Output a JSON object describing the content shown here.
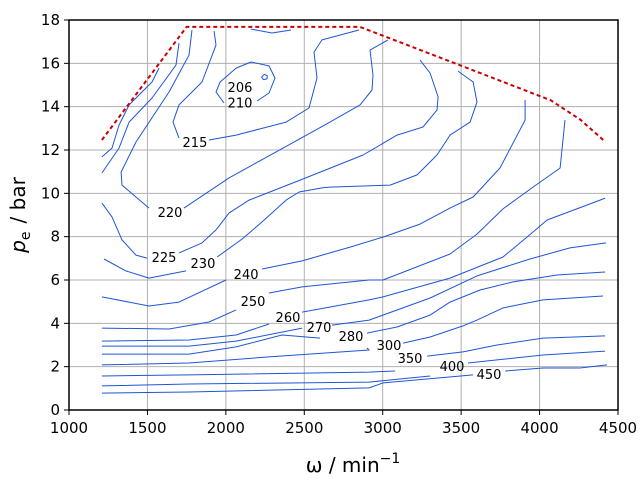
{
  "chart_data": {
    "type": "contour",
    "title": "",
    "xlabel": "ω / min",
    "xlabel_sup": "−1",
    "ylabel": "p",
    "ylabel_sub": "e",
    "ylabel_unit": "/ bar",
    "xlim": [
      1000,
      4500
    ],
    "ylim": [
      0,
      18
    ],
    "xticks": [
      1000,
      1500,
      2000,
      2500,
      3000,
      3500,
      4000,
      4500
    ],
    "yticks": [
      0,
      2,
      4,
      6,
      8,
      10,
      12,
      14,
      16,
      18
    ],
    "grid": true,
    "colors": {
      "contour": "#1f55d6",
      "full_load": "#cc0000",
      "grid": "#b0b0b0"
    },
    "full_load_curve": [
      [
        1210,
        12.46
      ],
      [
        1750,
        17.68
      ],
      [
        2855,
        17.68
      ],
      [
        3490,
        15.92
      ],
      [
        4070,
        14.3
      ],
      [
        4260,
        13.4
      ],
      [
        4420,
        12.37
      ]
    ],
    "contours": [
      {
        "level": "206",
        "label": [
          2090,
          14.9
        ],
        "segments": [
          [
            [
              2245,
              15.5
            ],
            [
              2265,
              15.42
            ],
            [
              2262,
              15.28
            ],
            [
              2240,
              15.25
            ],
            [
              2228,
              15.36
            ],
            [
              2245,
              15.5
            ]
          ]
        ]
      },
      {
        "level": "210",
        "label": [
          2090,
          14.2
        ],
        "segments": [
          [
            [
              1988,
              14.17
            ],
            [
              1937,
              14.68
            ],
            [
              1963,
              15.14
            ],
            [
              2065,
              15.78
            ],
            [
              2160,
              16.06
            ],
            [
              2275,
              15.88
            ],
            [
              2313,
              15.32
            ],
            [
              2275,
              14.63
            ],
            [
              2199,
              14.26
            ]
          ],
          [
            [
              2160,
              17.58
            ],
            [
              2294,
              17.4
            ],
            [
              2415,
              17.54
            ]
          ]
        ]
      },
      {
        "level": "215",
        "label": [
          1803,
          12.37
        ],
        "segments": [
          [
            [
              1925,
              17.49
            ],
            [
              1937,
              16.84
            ],
            [
              1848,
              15.14
            ],
            [
              1701,
              14.08
            ],
            [
              1663,
              13.29
            ],
            [
              1701,
              12.55
            ]
          ],
          [
            [
              1893,
              12.46
            ],
            [
              2065,
              12.69
            ],
            [
              2384,
              13.29
            ],
            [
              2530,
              13.94
            ],
            [
              2581,
              15.32
            ],
            [
              2562,
              16.52
            ],
            [
              2613,
              17.08
            ],
            [
              2849,
              17.54
            ]
          ]
        ]
      },
      {
        "level": "220",
        "label": [
          1644,
          9.14
        ],
        "segments": [
          [
            [
              1784,
              17.54
            ],
            [
              1765,
              16.38
            ],
            [
              1638,
              14.68
            ],
            [
              1427,
              12.37
            ],
            [
              1332,
              10.98
            ],
            [
              1338,
              10.38
            ],
            [
              1510,
              9.32
            ]
          ],
          [
            [
              1733,
              9.32
            ],
            [
              2020,
              10.71
            ],
            [
              2320,
              11.91
            ],
            [
              2664,
              13.29
            ],
            [
              2855,
              14.08
            ],
            [
              2932,
              14.77
            ],
            [
              2938,
              15.46
            ],
            [
              2919,
              16.61
            ],
            [
              3034,
              17.08
            ]
          ]
        ]
      },
      {
        "level": "225",
        "label": [
          1606,
          7.06
        ],
        "segments": [
          [
            [
              1701,
              16.94
            ],
            [
              1682,
              15.92
            ],
            [
              1529,
              14.4
            ],
            [
              1383,
              13.29
            ],
            [
              1319,
              12.09
            ],
            [
              1210,
              10.94
            ]
          ],
          [
            [
              1210,
              9.55
            ],
            [
              1274,
              8.91
            ],
            [
              1338,
              7.85
            ],
            [
              1427,
              7.15
            ],
            [
              1497,
              7.01
            ]
          ],
          [
            [
              1701,
              7.25
            ],
            [
              1848,
              7.71
            ],
            [
              1937,
              8.31
            ],
            [
              2020,
              9.09
            ],
            [
              2148,
              9.69
            ],
            [
              2473,
              10.61
            ],
            [
              2875,
              11.77
            ],
            [
              3091,
              12.69
            ],
            [
              3257,
              13.06
            ],
            [
              3346,
              13.84
            ],
            [
              3353,
              14.45
            ],
            [
              3302,
              15.55
            ],
            [
              3238,
              16.15
            ]
          ]
        ]
      },
      {
        "level": "230",
        "label": [
          1854,
          6.78
        ],
        "segments": [
          [
            [
              1574,
              15.78
            ],
            [
              1529,
              15.14
            ],
            [
              1383,
              14.08
            ],
            [
              1319,
              13.15
            ],
            [
              1274,
              12.09
            ],
            [
              1210,
              11.68
            ]
          ],
          [
            [
              1223,
              6.97
            ],
            [
              1363,
              6.42
            ],
            [
              1510,
              6.09
            ],
            [
              1746,
              6.42
            ]
          ],
          [
            [
              1944,
              7.06
            ],
            [
              2103,
              7.89
            ],
            [
              2231,
              8.68
            ],
            [
              2384,
              9.69
            ],
            [
              2467,
              10.06
            ],
            [
              2613,
              10.25
            ],
            [
              2664,
              10.29
            ],
            [
              3047,
              10.38
            ],
            [
              3219,
              10.85
            ],
            [
              3346,
              11.77
            ],
            [
              3429,
              12.69
            ],
            [
              3557,
              13.29
            ],
            [
              3601,
              14.21
            ],
            [
              3576,
              15.14
            ],
            [
              3480,
              15.64
            ]
          ]
        ]
      },
      {
        "level": "240",
        "label": [
          2129,
          6.28
        ],
        "segments": [
          [
            [
              1210,
              5.22
            ],
            [
              1510,
              4.8
            ],
            [
              1701,
              4.98
            ],
            [
              2001,
              6.0
            ]
          ],
          [
            [
              2231,
              6.51
            ],
            [
              2486,
              6.88
            ],
            [
              2792,
              7.52
            ],
            [
              3002,
              7.98
            ],
            [
              3238,
              8.58
            ],
            [
              3429,
              9.32
            ],
            [
              3576,
              9.83
            ],
            [
              3748,
              11.17
            ],
            [
              3908,
              13.38
            ],
            [
              3908,
              14.31
            ]
          ]
        ]
      },
      {
        "level": "250",
        "label": [
          2173,
          5.03
        ],
        "segments": [
          [
            [
              1210,
              3.78
            ],
            [
              1638,
              3.74
            ],
            [
              1893,
              4.06
            ],
            [
              2065,
              4.62
            ]
          ],
          [
            [
              2275,
              5.4
            ],
            [
              2486,
              5.68
            ],
            [
              2913,
              6.0
            ],
            [
              3002,
              6.0
            ],
            [
              3429,
              7.2
            ],
            [
              3601,
              8.12
            ],
            [
              3767,
              9.28
            ],
            [
              3958,
              10.29
            ],
            [
              4131,
              11.17
            ],
            [
              4162,
              13.38
            ]
          ]
        ]
      },
      {
        "level": "260",
        "label": [
          2396,
          4.29
        ],
        "segments": [
          [
            [
              1210,
              3.18
            ],
            [
              1765,
              3.23
            ],
            [
              2065,
              3.46
            ],
            [
              2275,
              3.97
            ]
          ],
          [
            [
              2486,
              4.52
            ],
            [
              2913,
              5.08
            ],
            [
              3002,
              5.22
            ],
            [
              3429,
              6.09
            ],
            [
              3767,
              7.06
            ],
            [
              3920,
              7.98
            ],
            [
              4048,
              8.77
            ],
            [
              4386,
              9.69
            ],
            [
              4418,
              9.78
            ]
          ]
        ]
      },
      {
        "level": "270",
        "label": [
          2594,
          3.83
        ],
        "segments": [
          [
            [
              1210,
              2.95
            ],
            [
              1765,
              2.95
            ],
            [
              2065,
              3.18
            ],
            [
              2486,
              3.78
            ]
          ],
          [
            [
              2677,
              3.92
            ],
            [
              2913,
              4.15
            ],
            [
              3302,
              5.17
            ],
            [
              3601,
              6.19
            ],
            [
              3939,
              6.97
            ],
            [
              4194,
              7.48
            ],
            [
              4424,
              7.71
            ]
          ]
        ]
      },
      {
        "level": "280",
        "label": [
          2798,
          3.42
        ],
        "segments": [
          [
            [
              1210,
              2.58
            ],
            [
              1765,
              2.58
            ],
            [
              2065,
              2.91
            ],
            [
              2358,
              3.46
            ],
            [
              2600,
              3.32
            ]
          ],
          [
            [
              2900,
              3.55
            ],
            [
              3091,
              3.83
            ],
            [
              3302,
              4.38
            ],
            [
              3429,
              4.98
            ],
            [
              3620,
              5.54
            ],
            [
              3831,
              5.91
            ],
            [
              4111,
              6.23
            ],
            [
              4418,
              6.37
            ]
          ]
        ]
      },
      {
        "level": "300",
        "label": [
          3040,
          3.0
        ],
        "segments": [
          [
            [
              1210,
              2.08
            ],
            [
              1765,
              2.17
            ],
            [
              2275,
              2.45
            ],
            [
              2913,
              2.77
            ],
            [
              2900,
              2.86
            ]
          ],
          [
            [
              3130,
              3.09
            ],
            [
              3302,
              3.37
            ],
            [
              3512,
              3.88
            ],
            [
              3601,
              4.15
            ],
            [
              3767,
              4.71
            ],
            [
              4022,
              5.08
            ],
            [
              4405,
              5.26
            ]
          ]
        ]
      },
      {
        "level": "350",
        "label": [
          3174,
          2.4
        ],
        "segments": [
          [
            [
              1210,
              1.57
            ],
            [
              1765,
              1.62
            ],
            [
              2913,
              1.75
            ],
            [
              3079,
              1.8
            ]
          ],
          [
            [
              3283,
              2.49
            ],
            [
              3512,
              2.68
            ],
            [
              3729,
              3.0
            ],
            [
              4022,
              3.32
            ],
            [
              4418,
              3.42
            ]
          ]
        ]
      },
      {
        "level": "400",
        "label": [
          3442,
          2.03
        ],
        "segments": [
          [
            [
              1210,
              1.11
            ],
            [
              1765,
              1.2
            ],
            [
              2913,
              1.29
            ],
            [
              3302,
              1.57
            ]
          ],
          [
            [
              3544,
              2.17
            ],
            [
              3729,
              2.31
            ],
            [
              4022,
              2.54
            ],
            [
              4418,
              2.72
            ]
          ]
        ]
      },
      {
        "level": "450",
        "label": [
          3678,
          1.66
        ],
        "segments": [
          [
            [
              1210,
              0.78
            ],
            [
              1765,
              0.83
            ],
            [
              2913,
              1.02
            ],
            [
              3002,
              1.25
            ],
            [
              3576,
              1.62
            ]
          ],
          [
            [
              3780,
              1.8
            ],
            [
              4022,
              1.94
            ],
            [
              4258,
              1.94
            ],
            [
              4430,
              2.08
            ]
          ]
        ]
      }
    ]
  }
}
